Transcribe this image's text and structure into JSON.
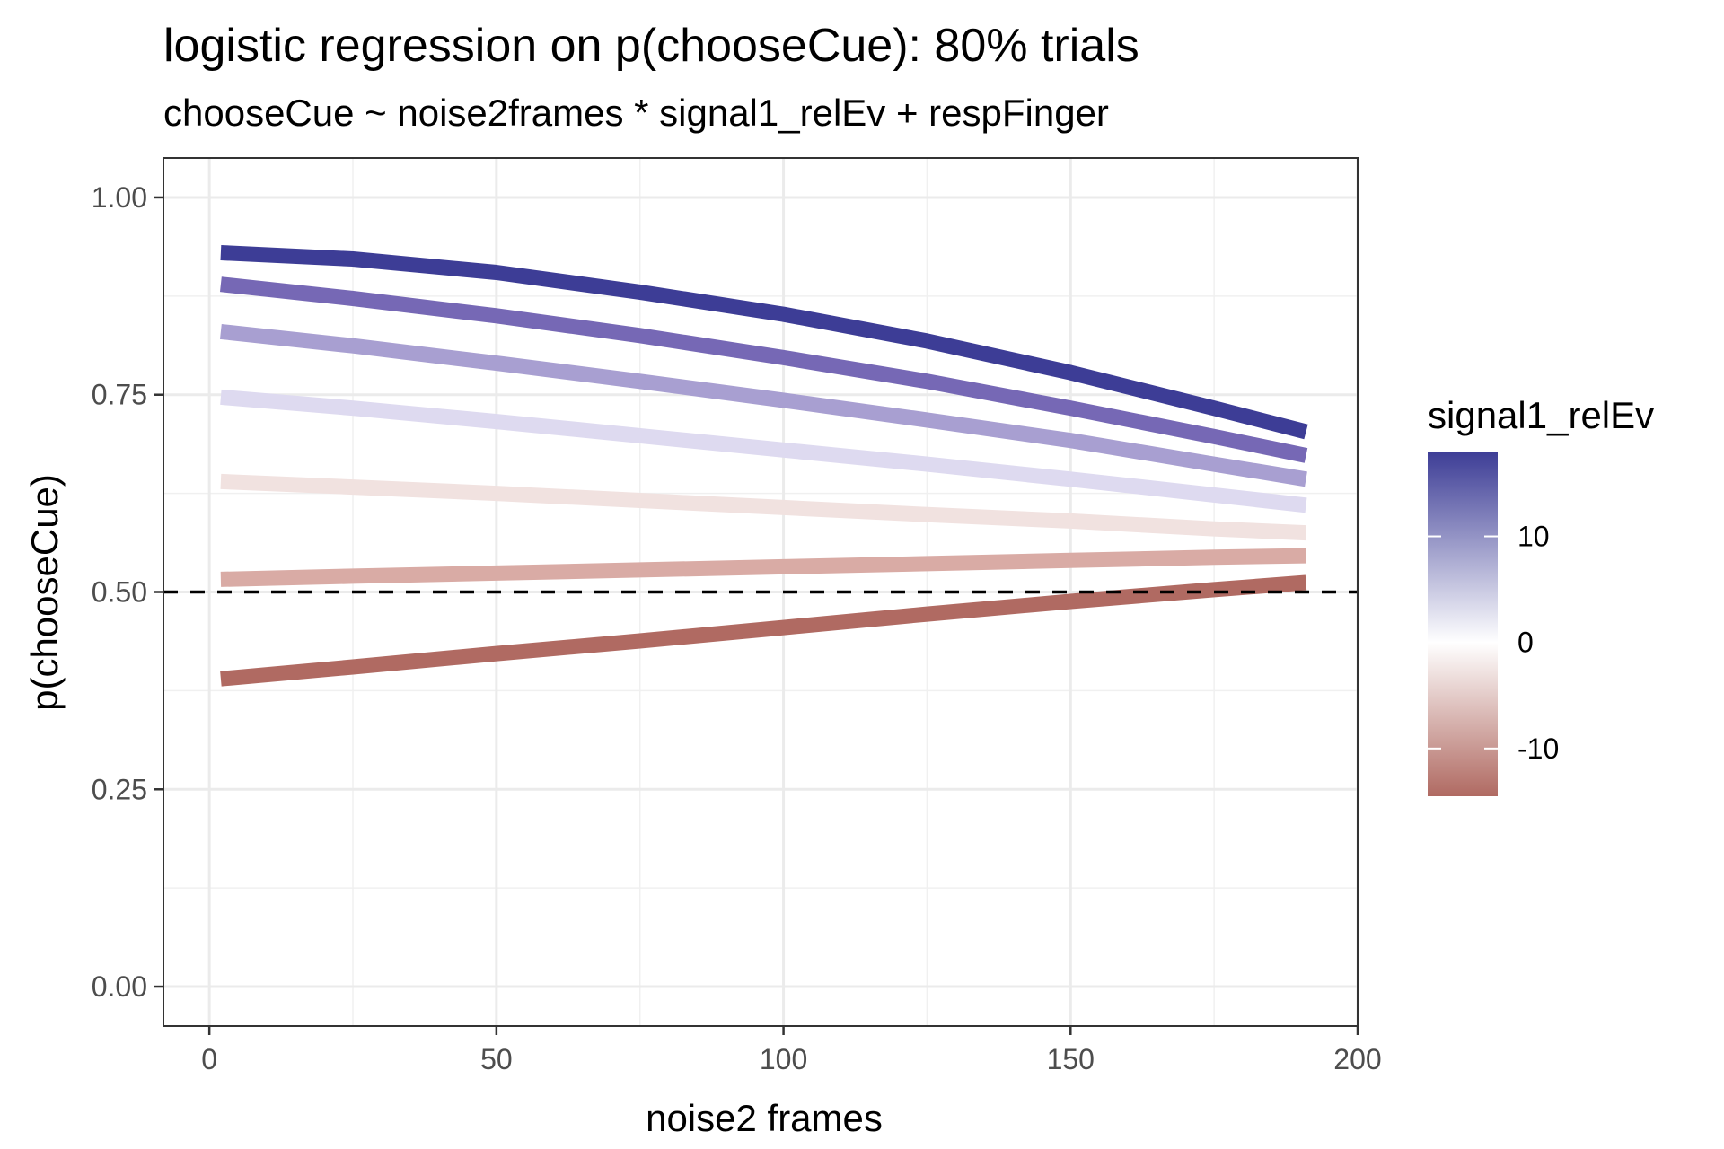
{
  "chart_data": {
    "type": "line",
    "title": "logistic regression on p(chooseCue): 80% trials",
    "subtitle": "chooseCue ~ noise2frames * signal1_relEv + respFinger",
    "xlabel": "noise2 frames",
    "ylabel": "p(chooseCue)",
    "xlim": [
      -8,
      200
    ],
    "ylim": [
      -0.05,
      1.05
    ],
    "x_ticks": [
      0,
      50,
      100,
      150,
      200
    ],
    "x_tick_labels": [
      "0",
      "50",
      "100",
      "150",
      "200"
    ],
    "y_ticks": [
      0,
      0.25,
      0.5,
      0.75,
      1
    ],
    "y_tick_labels": [
      "0.00",
      "0.25",
      "0.50",
      "0.75",
      "1.00"
    ],
    "grid": true,
    "reference_line": {
      "y": 0.5,
      "style": "dashed",
      "color": "#000000"
    },
    "legend": {
      "title": "signal1_relEv",
      "position": "right",
      "type": "colorbar",
      "min": -14.5,
      "max": 18,
      "ticks": [
        10,
        0,
        -10
      ],
      "tick_labels": [
        "10",
        "0",
        "-10"
      ],
      "colors": {
        "high": "#3d3d96",
        "mid": "#ffffff",
        "low": "#b06a62"
      }
    },
    "series": [
      {
        "signal": 18,
        "color": "#3d3d96",
        "x": [
          2,
          25,
          50,
          75,
          100,
          125,
          150,
          175,
          191
        ],
        "y": [
          0.93,
          0.922,
          0.905,
          0.88,
          0.852,
          0.818,
          0.778,
          0.733,
          0.703
        ]
      },
      {
        "signal": 13,
        "color": "#7668b5",
        "x": [
          2,
          25,
          50,
          75,
          100,
          125,
          150,
          175,
          191
        ],
        "y": [
          0.89,
          0.872,
          0.85,
          0.825,
          0.797,
          0.767,
          0.733,
          0.697,
          0.673
        ]
      },
      {
        "signal": 8,
        "color": "#a89fd1",
        "x": [
          2,
          25,
          50,
          75,
          100,
          125,
          150,
          175,
          191
        ],
        "y": [
          0.83,
          0.812,
          0.79,
          0.767,
          0.743,
          0.718,
          0.692,
          0.662,
          0.643
        ]
      },
      {
        "signal": 3,
        "color": "#dedaf0",
        "x": [
          2,
          25,
          50,
          75,
          100,
          125,
          150,
          175,
          191
        ],
        "y": [
          0.747,
          0.733,
          0.716,
          0.698,
          0.68,
          0.662,
          0.643,
          0.623,
          0.61
        ]
      },
      {
        "signal": -2,
        "color": "#f1e2e0",
        "x": [
          2,
          25,
          50,
          75,
          100,
          125,
          150,
          175,
          191
        ],
        "y": [
          0.64,
          0.633,
          0.625,
          0.616,
          0.607,
          0.598,
          0.59,
          0.58,
          0.575
        ]
      },
      {
        "signal": -7,
        "color": "#d9aba5",
        "x": [
          2,
          25,
          50,
          75,
          100,
          125,
          150,
          175,
          191
        ],
        "y": [
          0.516,
          0.52,
          0.524,
          0.528,
          0.532,
          0.536,
          0.54,
          0.544,
          0.546
        ]
      },
      {
        "signal": -12,
        "color": "#b06a62",
        "x": [
          2,
          25,
          50,
          75,
          100,
          125,
          150,
          175,
          191
        ],
        "y": [
          0.39,
          0.405,
          0.422,
          0.438,
          0.455,
          0.472,
          0.488,
          0.503,
          0.512
        ]
      }
    ]
  }
}
